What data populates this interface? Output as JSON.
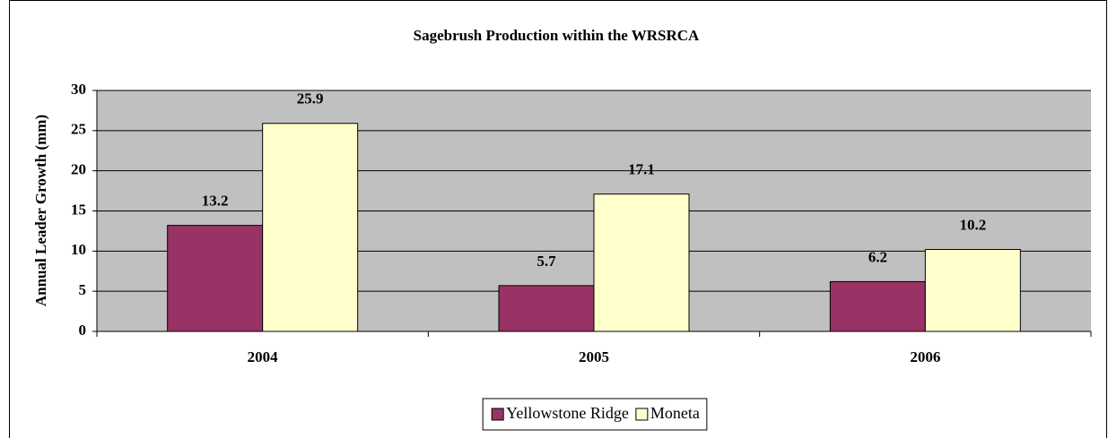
{
  "chart_data": {
    "type": "bar",
    "title": "Sagebrush Production within the WRSRCA",
    "ylabel": "Annual Leader Growth (mm)",
    "categories": [
      "2004",
      "2005",
      "2006"
    ],
    "series": [
      {
        "name": "Yellowstone Ridge",
        "color": "#993366",
        "values": [
          13.2,
          5.7,
          6.2
        ]
      },
      {
        "name": "Moneta",
        "color": "#ffffcc",
        "values": [
          25.9,
          17.1,
          10.2
        ]
      }
    ],
    "ylim": [
      0,
      30
    ],
    "yticks": [
      0,
      5,
      10,
      15,
      20,
      25,
      30
    ],
    "grid": true,
    "legend": "bottom"
  }
}
